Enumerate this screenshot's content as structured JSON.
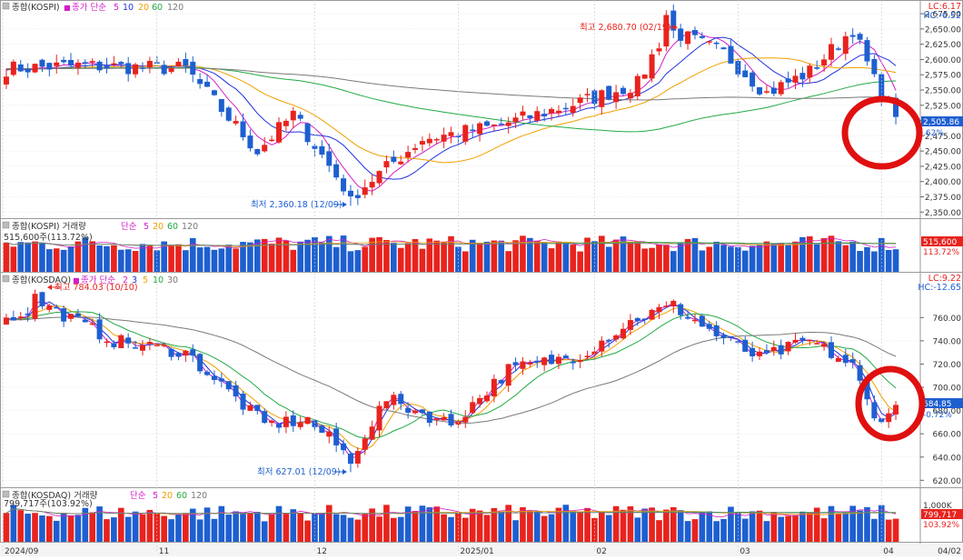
{
  "colors": {
    "up": "#e8231e",
    "down": "#1e5fd0",
    "ma5": "#d21ec8",
    "ma10": "#2233dd",
    "ma20": "#f0a000",
    "ma60": "#22aa44",
    "ma120": "#7a7a7a",
    "axis_text": "#333333",
    "grid": "#d8d8d8",
    "highlight_circle": "#e01010",
    "price_tag": "#1e5fd0",
    "vol_tag": "#e8231e"
  },
  "kospi_panel": {
    "legend": {
      "name": "종합(KOSPI)",
      "separator": "■",
      "label": "종가 단순",
      "ma": [
        "5",
        "10",
        "20",
        "60",
        "120"
      ]
    },
    "lc_label": "LC:6.17",
    "hc_label": "HC:-6.52",
    "current_value": "2,505.86",
    "current_change": ".62%",
    "high_annotation": "최고 2,680.70 (02/19)",
    "low_annotation": "최저 2,360.18 (12/09)"
  },
  "kospi_volume_panel": {
    "legend": {
      "name": "종합(KOSPI) 거래량",
      "label": "단순",
      "ma": [
        "5",
        "20",
        "60",
        "120"
      ]
    },
    "subtitle": "515,600주(113.72%)",
    "tag_value": "515,600",
    "tag_pct": "113.72%"
  },
  "kosdaq_panel": {
    "legend": {
      "name": "종합(KOSDAQ)",
      "separator": "■",
      "label": "종가 단순",
      "ma": [
        "2",
        "3",
        "5",
        "10",
        "30"
      ]
    },
    "lc_label": "LC:9.22",
    "hc_label": "HC:-12.65",
    "current_value": "684.85",
    "current_change": "-0.72%",
    "high_annotation": "최고 784.03 (10/10)",
    "low_annotation": "최저 627.01 (12/09)"
  },
  "kosdaq_volume_panel": {
    "legend": {
      "name": "종합(KOSDAQ) 거래량",
      "label": "단순",
      "ma": [
        "5",
        "20",
        "60",
        "120"
      ]
    },
    "subtitle": "799,717주(103.92%)",
    "axis_label": "1,000K",
    "tag_value": "799,717",
    "tag_pct": "103.92%"
  },
  "x_axis": {
    "labels": [
      "2024/09",
      "11",
      "12",
      "2025/01",
      "02",
      "03",
      "04",
      "04/02"
    ]
  },
  "chart_data": [
    {
      "type": "candlestick",
      "title": "종합(KOSPI)",
      "y_ticks": [
        "2,675.00",
        "2,650.00",
        "2,625.00",
        "2,600.00",
        "2,575.00",
        "2,550.00",
        "2,525.00",
        "2,500.00",
        "2,475.00",
        "2,450.00",
        "2,425.00",
        "2,400.00",
        "2,375.00",
        "2,350.00"
      ],
      "ylim": [
        2340,
        2693
      ],
      "candle_count": 125,
      "anchors": {
        "start": 2590,
        "high": 2680.7,
        "high_index": 92,
        "low": 2360.18,
        "low_index": 48,
        "last": 2505.86
      },
      "series": [
        {
          "name": "5"
        },
        {
          "name": "10"
        },
        {
          "name": "20"
        },
        {
          "name": "60"
        },
        {
          "name": "120"
        }
      ]
    },
    {
      "type": "bar",
      "title": "종합(KOSPI) 거래량",
      "last_value": 515600,
      "series": [
        {
          "name": "5"
        },
        {
          "name": "20"
        },
        {
          "name": "60"
        },
        {
          "name": "120"
        }
      ]
    },
    {
      "type": "candlestick",
      "title": "종합(KOSDAQ)",
      "y_ticks": [
        "760.00",
        "740.00",
        "720.00",
        "700.00",
        "680.00",
        "660.00",
        "640.00",
        "620.00"
      ],
      "ylim": [
        614,
        797
      ],
      "candle_count": 125,
      "anchors": {
        "start": 760,
        "high": 784.03,
        "high_index": 4,
        "low": 627.01,
        "low_index": 48,
        "last": 684.85
      },
      "series": [
        {
          "name": "2"
        },
        {
          "name": "3"
        },
        {
          "name": "5"
        },
        {
          "name": "10"
        },
        {
          "name": "30"
        }
      ]
    },
    {
      "type": "bar",
      "title": "종합(KOSDAQ) 거래량",
      "last_value": 799717,
      "series": [
        {
          "name": "5"
        },
        {
          "name": "20"
        },
        {
          "name": "60"
        },
        {
          "name": "120"
        }
      ]
    }
  ]
}
